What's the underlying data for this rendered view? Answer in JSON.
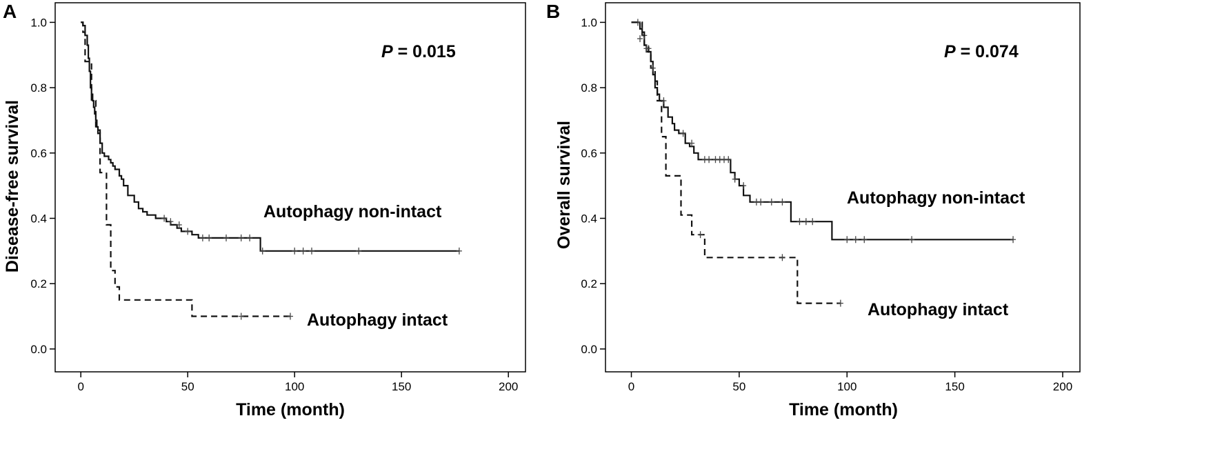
{
  "chart_data": [
    {
      "panel": "A",
      "type": "line",
      "subtype": "kaplan-meier",
      "xlabel": "Time (month)",
      "ylabel": "Disease-free survival",
      "xlim": [
        -12,
        208
      ],
      "ylim": [
        -0.07,
        1.06
      ],
      "xticks": [
        0,
        50,
        100,
        150,
        200
      ],
      "yticks": [
        0.0,
        0.2,
        0.4,
        0.6,
        0.8,
        1.0
      ],
      "xtick_labels": [
        "0",
        "50",
        "100",
        "150",
        "200"
      ],
      "ytick_labels": [
        "0.0",
        "0.2",
        "0.4",
        "0.6",
        "0.8",
        "1.0"
      ],
      "p_label": "P",
      "p_value": " = 0.015",
      "grid": false,
      "series": [
        {
          "name": "Autophagy non-intact",
          "dash": "solid",
          "x": [
            0,
            1,
            2,
            3,
            3.5,
            4,
            4.5,
            5,
            5.5,
            6,
            6.5,
            7,
            7.5,
            8,
            9,
            10,
            11,
            13,
            14,
            15,
            16,
            18,
            19,
            20,
            22,
            25,
            27,
            29,
            31,
            35,
            40,
            42,
            45,
            47,
            52,
            55,
            84,
            177
          ],
          "y": [
            1.0,
            0.99,
            0.96,
            0.93,
            0.89,
            0.85,
            0.8,
            0.78,
            0.76,
            0.74,
            0.72,
            0.7,
            0.68,
            0.66,
            0.63,
            0.6,
            0.59,
            0.58,
            0.57,
            0.56,
            0.55,
            0.53,
            0.52,
            0.5,
            0.47,
            0.45,
            0.43,
            0.42,
            0.41,
            0.4,
            0.39,
            0.38,
            0.37,
            0.36,
            0.35,
            0.34,
            0.3,
            0.3
          ],
          "censor_x": [
            39,
            42,
            46,
            50,
            57,
            60,
            68,
            75,
            79,
            85,
            100,
            104,
            108,
            130,
            177
          ],
          "censor_y": [
            0.4,
            0.39,
            0.38,
            0.36,
            0.34,
            0.34,
            0.34,
            0.34,
            0.34,
            0.3,
            0.3,
            0.3,
            0.3,
            0.3,
            0.3
          ]
        },
        {
          "name": "Autophagy intact",
          "dash": "dashed",
          "x": [
            0,
            1,
            2,
            5,
            7,
            9,
            12,
            14,
            16,
            18,
            21,
            52,
            98
          ],
          "y": [
            1.0,
            0.97,
            0.88,
            0.76,
            0.67,
            0.54,
            0.38,
            0.24,
            0.19,
            0.15,
            0.15,
            0.1,
            0.1
          ],
          "censor_x": [
            75,
            98
          ],
          "censor_y": [
            0.1,
            0.1
          ]
        }
      ],
      "annotations": {
        "label_non_intact": "Autophagy non-intact",
        "label_intact": "Autophagy intact"
      }
    },
    {
      "panel": "B",
      "type": "line",
      "subtype": "kaplan-meier",
      "xlabel": "Time (month)",
      "ylabel": "Overall survival",
      "xlim": [
        -12,
        208
      ],
      "ylim": [
        -0.07,
        1.06
      ],
      "xticks": [
        0,
        50,
        100,
        150,
        200
      ],
      "yticks": [
        0.0,
        0.2,
        0.4,
        0.6,
        0.8,
        1.0
      ],
      "xtick_labels": [
        "0",
        "50",
        "100",
        "150",
        "200"
      ],
      "ytick_labels": [
        "0.0",
        "0.2",
        "0.4",
        "0.6",
        "0.8",
        "1.0"
      ],
      "p_label": "P",
      "p_value": " = 0.074",
      "grid": false,
      "series": [
        {
          "name": "Autophagy non-intact",
          "dash": "solid",
          "x": [
            0,
            4,
            5,
            6,
            7,
            9,
            10,
            11,
            12,
            13,
            15,
            17,
            19,
            20,
            22,
            25,
            27,
            29,
            31,
            46,
            48,
            50,
            52,
            55,
            74,
            93,
            177
          ],
          "y": [
            1.0,
            0.98,
            0.96,
            0.93,
            0.91,
            0.88,
            0.84,
            0.8,
            0.78,
            0.76,
            0.74,
            0.71,
            0.69,
            0.67,
            0.66,
            0.63,
            0.62,
            0.6,
            0.58,
            0.54,
            0.52,
            0.5,
            0.47,
            0.45,
            0.39,
            0.335,
            0.335
          ],
          "censor_x": [
            3,
            6,
            8,
            24,
            28,
            34,
            36,
            39,
            41,
            43,
            45,
            48,
            52,
            58,
            60,
            65,
            70,
            78,
            81,
            84,
            100,
            104,
            108,
            130,
            177
          ],
          "censor_y": [
            1.0,
            0.96,
            0.92,
            0.66,
            0.63,
            0.58,
            0.58,
            0.58,
            0.58,
            0.58,
            0.58,
            0.52,
            0.5,
            0.45,
            0.45,
            0.45,
            0.45,
            0.39,
            0.39,
            0.39,
            0.335,
            0.335,
            0.335,
            0.335,
            0.335
          ]
        },
        {
          "name": "Autophagy intact",
          "dash": "dashed",
          "x": [
            0,
            5,
            6,
            8,
            9,
            11,
            12,
            14,
            16,
            20,
            23,
            28,
            31,
            34,
            75,
            77,
            97
          ],
          "y": [
            1.0,
            0.97,
            0.93,
            0.9,
            0.86,
            0.82,
            0.76,
            0.65,
            0.53,
            0.53,
            0.41,
            0.35,
            0.35,
            0.28,
            0.28,
            0.14,
            0.14
          ],
          "censor_x": [
            4,
            7,
            10,
            15,
            32,
            70,
            97
          ],
          "censor_y": [
            0.95,
            0.92,
            0.86,
            0.76,
            0.35,
            0.28,
            0.14
          ]
        }
      ],
      "annotations": {
        "label_non_intact": "Autophagy non-intact",
        "label_intact": "Autophagy intact"
      }
    }
  ]
}
